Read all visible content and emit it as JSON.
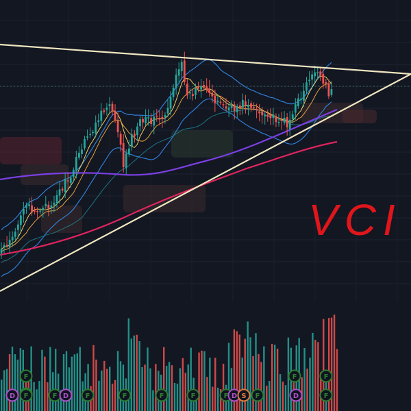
{
  "chart_data": {
    "type": "candlestick",
    "annotation": "VCI",
    "annotation_color": "#e0161b",
    "grid": true,
    "background": "#131722",
    "colors": {
      "up": "#26a69a",
      "down": "#ef5350",
      "trendline": "#efe6c0",
      "ma_long": "#7b3fe4",
      "ma_longer": "#e0245e",
      "bollinger": "#2f7fd6",
      "ma_short": "#e8a33d",
      "ma_mid": "#f0d060",
      "event_circle": "#2e7d32",
      "event_dividend": "#b04fc8",
      "event_split": "#e07a3a"
    },
    "series": [
      {
        "name": "",
        "kind": "price"
      },
      {
        "name": "",
        "kind": "volume"
      }
    ],
    "events_row1": [
      "F",
      "F",
      "F",
      "F"
    ],
    "events_row2": [
      "D",
      "F",
      "F",
      "D",
      "F",
      "F",
      "F",
      "F",
      "F",
      "D",
      "S",
      "F",
      "D",
      "F"
    ],
    "event_letters": {
      "F": "F",
      "D": "D",
      "S": "S"
    }
  }
}
